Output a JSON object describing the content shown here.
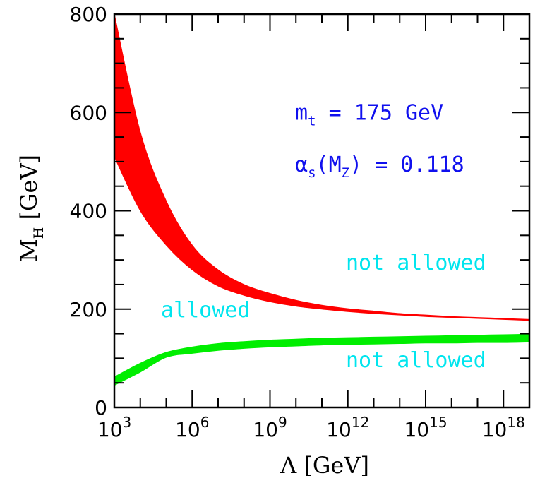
{
  "chart_data": {
    "type": "area",
    "xlabel": "Λ [GeV]",
    "ylabel": "M_H [GeV]",
    "x_scale": "log10",
    "xlim": [
      1000,
      1e+19
    ],
    "ylim": [
      0,
      800
    ],
    "x_ticks": [
      {
        "base": "10",
        "exp": "3",
        "value": 1000
      },
      {
        "base": "10",
        "exp": "6",
        "value": 1000000
      },
      {
        "base": "10",
        "exp": "9",
        "value": 1000000000
      },
      {
        "base": "10",
        "exp": "12",
        "value": 1000000000000
      },
      {
        "base": "10",
        "exp": "15",
        "value": 1000000000000000
      },
      {
        "base": "10",
        "exp": "18",
        "value": 1000000000000000000
      }
    ],
    "y_ticks": [
      "0",
      "200",
      "400",
      "600",
      "800"
    ],
    "series": [
      {
        "color": "#ff0000",
        "x": [
          1000,
          10000,
          100000,
          1000000,
          10000000,
          100000000,
          1000000000,
          10000000000,
          100000000000,
          1000000000000,
          10000000000000,
          100000000000000,
          1000000000000000,
          10000000000000000,
          100000000000000000,
          1000000000000000000,
          1e+19
        ],
        "upper": [
          800,
          560,
          420,
          330,
          280,
          250,
          232,
          218,
          208,
          201,
          196,
          191,
          188,
          185,
          183,
          181,
          179
        ],
        "lower": [
          510,
          400,
          330,
          280,
          247,
          228,
          215,
          206,
          200,
          195,
          191,
          188,
          185,
          183,
          181,
          179,
          177
        ]
      },
      {
        "color": "#00ee00",
        "x": [
          1000,
          10000,
          100000,
          1000000,
          10000000,
          100000000,
          1000000000,
          10000000000,
          100000000000,
          1000000000000,
          10000000000000,
          100000000000000,
          1000000000000000,
          10000000000000000,
          100000000000000000,
          1000000000000000000,
          1e+19
        ],
        "upper": [
          62,
          90,
          112,
          123,
          130,
          134,
          137,
          139,
          141,
          142,
          143,
          144,
          145,
          146,
          147,
          148,
          149
        ],
        "lower": [
          45,
          72,
          102,
          110,
          116,
          120,
          123,
          125,
          127,
          128,
          129,
          130,
          131,
          131,
          132,
          132,
          133
        ]
      }
    ],
    "annotations": {
      "mt": {
        "symbol": "m",
        "sub": "t",
        "rest": " = 175 GeV",
        "x": 1000000000000,
        "y": 600
      },
      "alpha": {
        "symbol": "α",
        "sub": "s",
        "mid": "(M",
        "sub2": "Z",
        "rest": ") = 0.118",
        "x": 1000000000000,
        "y": 490
      },
      "not_allowed_upper": {
        "text": "not allowed",
        "x": 1000000000000000,
        "y": 300
      },
      "allowed": {
        "text": "allowed",
        "x": 100000000,
        "y": 200
      },
      "not_allowed_lower": {
        "text": "not allowed",
        "x": 1000000000000000,
        "y": 95
      }
    },
    "grid": false,
    "legend": "none"
  }
}
